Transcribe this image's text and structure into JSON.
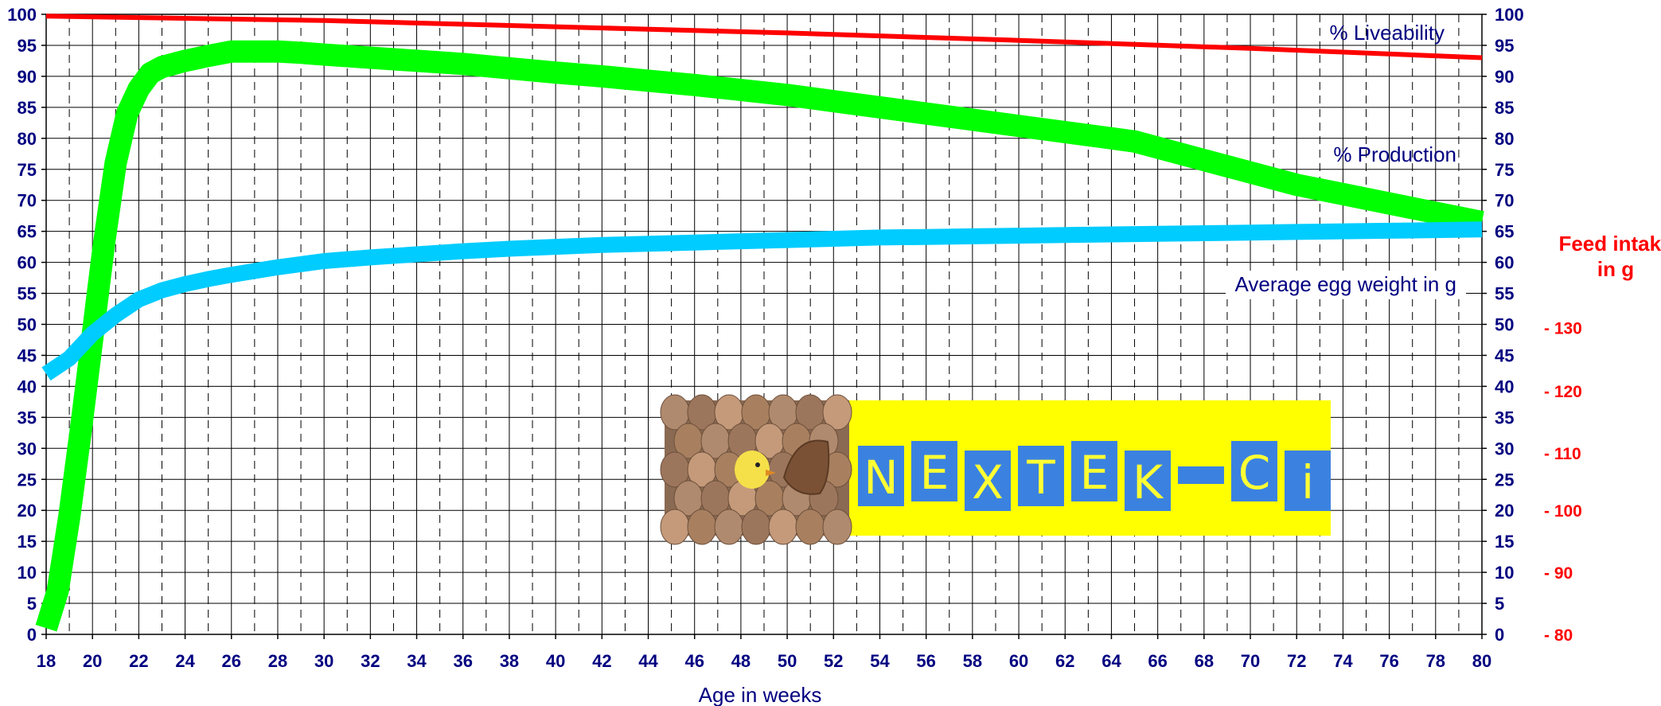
{
  "chart_data": {
    "type": "line",
    "xlabel": "Age in weeks",
    "xlim": [
      18,
      80
    ],
    "x_ticks": [
      18,
      20,
      22,
      24,
      26,
      28,
      30,
      32,
      34,
      36,
      38,
      40,
      42,
      44,
      46,
      48,
      50,
      52,
      54,
      56,
      58,
      60,
      62,
      64,
      66,
      68,
      70,
      72,
      74,
      76,
      78,
      80
    ],
    "ylim": [
      0,
      100
    ],
    "y_ticks": [
      0,
      5,
      10,
      15,
      20,
      25,
      30,
      35,
      40,
      45,
      50,
      55,
      60,
      65,
      70,
      75,
      80,
      85,
      90,
      95,
      100
    ],
    "grid": true,
    "secondary_axis": {
      "title_line1": "Feed intake",
      "title_line2": "in g",
      "ticks": [
        {
          "label": "-  80",
          "at": 0
        },
        {
          "label": "-  90",
          "at": 10
        },
        {
          "label": "-  100",
          "at": 20
        },
        {
          "label": "-  110",
          "at": 29.3
        },
        {
          "label": "-  120",
          "at": 39.3
        },
        {
          "label": "-  130",
          "at": 49.5
        }
      ]
    },
    "series": [
      {
        "name": "% Liveability",
        "color": "#ff0000",
        "x": [
          18,
          30,
          40,
          50,
          60,
          70,
          80
        ],
        "values": [
          99.7,
          99.0,
          98.0,
          97.0,
          95.8,
          94.5,
          93.0
        ]
      },
      {
        "name": "% Production",
        "color": "#00ff00",
        "x": [
          18,
          18.5,
          19,
          19.5,
          20,
          20.5,
          21,
          21.5,
          22,
          22.5,
          23,
          23.5,
          24,
          25,
          26,
          27,
          28,
          29,
          30,
          32,
          34,
          36,
          38,
          40,
          42,
          44,
          46,
          48,
          50,
          52,
          54,
          56,
          58,
          60,
          62,
          64,
          65,
          66,
          68,
          70,
          72,
          74,
          76,
          78,
          80
        ],
        "values": [
          1,
          7,
          19,
          33,
          48,
          63,
          76,
          84,
          88,
          90.5,
          91.5,
          92,
          92.5,
          93.3,
          94,
          94,
          94,
          93.8,
          93.5,
          93,
          92.5,
          92,
          91.3,
          90.6,
          90,
          89.3,
          88.6,
          87.8,
          87,
          86,
          85,
          84,
          83,
          82,
          81,
          80,
          79.5,
          78.5,
          76.5,
          74.5,
          72.5,
          71,
          69.5,
          68,
          66.5
        ]
      },
      {
        "name": "Average egg weight in g",
        "color": "#00ccff",
        "x": [
          18,
          19,
          20,
          21,
          22,
          23,
          24,
          25,
          26,
          27,
          28,
          29,
          30,
          32,
          34,
          36,
          38,
          40,
          42,
          44,
          46,
          48,
          50,
          52,
          54,
          56,
          58,
          60,
          62,
          64,
          66,
          68,
          70,
          72,
          74,
          76,
          78,
          80
        ],
        "values": [
          42,
          44.5,
          48.5,
          51.5,
          54,
          55.5,
          56.5,
          57.3,
          58,
          58.6,
          59.2,
          59.7,
          60.2,
          60.8,
          61.3,
          61.8,
          62.2,
          62.5,
          62.8,
          63,
          63.2,
          63.4,
          63.6,
          63.8,
          64,
          64.1,
          64.2,
          64.3,
          64.4,
          64.5,
          64.6,
          64.7,
          64.8,
          64.9,
          65,
          65.1,
          65.2,
          65.3
        ]
      }
    ],
    "annotations": [
      {
        "text": "% Liveability",
        "series": 0
      },
      {
        "text": "% Production",
        "series": 1
      },
      {
        "text": "Average egg weight in g",
        "series": 2
      }
    ]
  },
  "logo": {
    "letters": [
      "N",
      "E",
      "X",
      "T",
      "E",
      "K",
      "-",
      "C",
      "i"
    ]
  }
}
